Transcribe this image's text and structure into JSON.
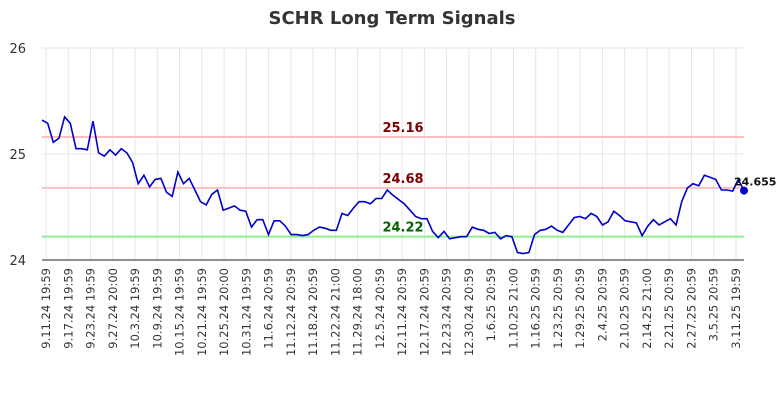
{
  "chart_data": {
    "type": "line",
    "title": "SCHR Long Term Signals",
    "xlabel": "",
    "ylabel": "",
    "ylim": [
      24,
      26
    ],
    "yticks": [
      24,
      25,
      26
    ],
    "grid": true,
    "x_tick_labels": [
      "9.11.24 19:59",
      "9.17.24 19:59",
      "9.23.24 19:59",
      "9.27.24 20:00",
      "10.3.24 19:59",
      "10.9.24 19:59",
      "10.15.24 19:59",
      "10.21.24 19:59",
      "10.25.24 20:00",
      "10.31.24 19:59",
      "11.6.24 20:59",
      "11.12.24 20:59",
      "11.18.24 20:59",
      "11.22.24 21:00",
      "11.29.24 18:00",
      "12.5.24 20:59",
      "12.11.24 20:59",
      "12.17.24 20:59",
      "12.23.24 20:59",
      "12.30.24 20:59",
      "1.6.25 20:59",
      "1.10.25 21:00",
      "1.16.25 20:59",
      "1.23.25 20:59",
      "1.29.25 20:59",
      "2.4.25 20:59",
      "2.10.25 20:59",
      "2.14.25 21:00",
      "2.21.25 20:59",
      "2.27.25 20:59",
      "3.5.25 20:59",
      "3.11.25 19:59"
    ],
    "series": [
      {
        "color": "#0000cc",
        "values": [
          25.32,
          25.29,
          25.11,
          25.15,
          25.35,
          25.29,
          25.05,
          25.05,
          25.04,
          25.31,
          25.01,
          24.98,
          25.04,
          24.99,
          25.05,
          25.01,
          24.92,
          24.72,
          24.8,
          24.69,
          24.76,
          24.77,
          24.64,
          24.6,
          24.83,
          24.72,
          24.77,
          24.66,
          24.55,
          24.52,
          24.62,
          24.66,
          24.47,
          24.49,
          24.51,
          24.47,
          24.46,
          24.31,
          24.38,
          24.38,
          24.24,
          24.37,
          24.37,
          24.32,
          24.24,
          24.24,
          24.23,
          24.24,
          24.28,
          24.31,
          24.3,
          24.28,
          24.28,
          24.44,
          24.42,
          24.49,
          24.55,
          24.55,
          24.53,
          24.58,
          24.58,
          24.66,
          24.61,
          24.57,
          24.53,
          24.47,
          24.41,
          24.39,
          24.39,
          24.27,
          24.21,
          24.27,
          24.2,
          24.21,
          24.22,
          24.22,
          24.31,
          24.29,
          24.28,
          24.25,
          24.26,
          24.2,
          24.23,
          24.22,
          24.07,
          24.06,
          24.07,
          24.24,
          24.28,
          24.29,
          24.32,
          24.28,
          24.26,
          24.33,
          24.4,
          24.41,
          24.39,
          24.44,
          24.41,
          24.33,
          24.36,
          24.46,
          24.42,
          24.37,
          24.36,
          24.35,
          24.23,
          24.32,
          24.38,
          24.33,
          24.36,
          24.39,
          24.33,
          24.55,
          24.68,
          24.72,
          24.7,
          24.8,
          24.78,
          24.76,
          24.66,
          24.66,
          24.65,
          24.76,
          24.655
        ]
      }
    ],
    "signals": [
      {
        "label": "25.16",
        "value": 25.16,
        "line_color": "#ffbfbf",
        "label_color": "#800000"
      },
      {
        "label": "24.68",
        "value": 24.68,
        "line_color": "#ffbfbf",
        "label_color": "#800000"
      },
      {
        "label": "24.22",
        "value": 24.22,
        "line_color": "#90ee90",
        "label_color": "#006400"
      }
    ],
    "last_value_label": "24.655"
  }
}
